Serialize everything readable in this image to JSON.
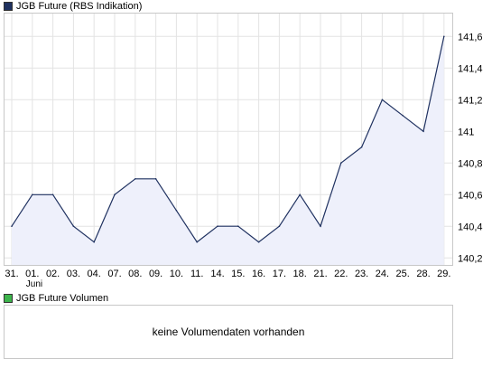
{
  "price_legend": {
    "label": "JGB Future (RBS Indikation)",
    "color": "#1f3160"
  },
  "volume_legend": {
    "label": "JGB Future Volumen",
    "color": "#3cb44b"
  },
  "volume_panel": {
    "message": "keine Volumendaten vorhanden"
  },
  "chart_data": {
    "type": "area",
    "title": "",
    "xlabel": "",
    "ylabel": "",
    "ylim": [
      140.15,
      141.75
    ],
    "yticks": [
      140.2,
      140.4,
      140.6,
      140.8,
      141,
      141.2,
      141.4,
      141.6
    ],
    "ytick_labels": [
      "140,2",
      "140,4",
      "140,6",
      "140,8",
      "141",
      "141,2",
      "141,4",
      "141,6"
    ],
    "categories": [
      "31.",
      "01.",
      "02.",
      "03.",
      "04.",
      "07.",
      "08.",
      "09.",
      "10.",
      "11.",
      "14.",
      "15.",
      "16.",
      "17.",
      "18.",
      "21.",
      "22.",
      "23.",
      "24.",
      "25.",
      "28.",
      "29."
    ],
    "month_label": {
      "text": "Juni",
      "category_index": 1
    },
    "grid": true,
    "line_color": "#1f3160",
    "fill_color": "#eef0fb",
    "series": [
      {
        "name": "JGB Future (RBS Indikation)",
        "values": [
          140.4,
          140.6,
          140.6,
          140.4,
          140.3,
          140.6,
          140.7,
          140.7,
          140.5,
          140.3,
          140.4,
          140.4,
          140.3,
          140.4,
          140.6,
          140.4,
          140.8,
          140.9,
          141.2,
          141.1,
          141.0,
          141.6
        ]
      }
    ]
  }
}
